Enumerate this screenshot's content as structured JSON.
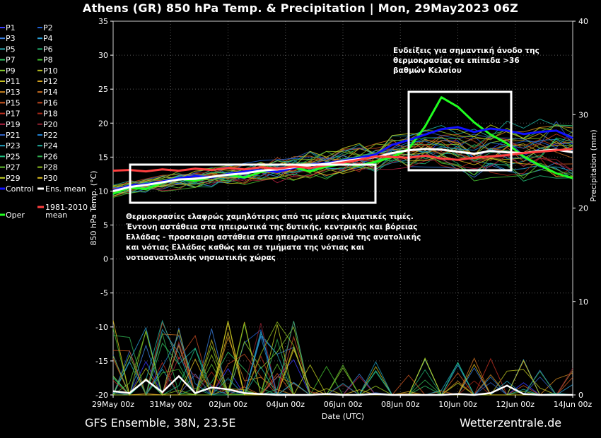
{
  "title": "Athens  (GR)  850 hPa Temp. & Precipitation | Mon, 29May2023 06Z",
  "footer": {
    "left": "GFS Ensemble, 38N, 23.5E",
    "right": "Wetterzentrale.de"
  },
  "chart_data": {
    "type": "line",
    "xlabel": "Date (UTC)",
    "ylabel": "850 hPa Temp. (°C)",
    "y2label": "Precipitation (mm)",
    "ylim": [
      -20,
      35
    ],
    "y2lim": [
      0,
      40
    ],
    "yticks": [
      -20,
      -15,
      -10,
      -5,
      0,
      5,
      10,
      15,
      20,
      25,
      30,
      35
    ],
    "y2ticks": [
      0,
      10,
      20,
      30,
      40
    ],
    "xticks": [
      "29May 00z",
      "31May 00z",
      "02Jun 00z",
      "04Jun 00z",
      "06Jun 00z",
      "08Jun 00z",
      "10Jun 00z",
      "12Jun 00z",
      "14Jun 00z"
    ],
    "grid": true,
    "legend_position": "left",
    "legend": [
      {
        "name": "P1",
        "color": "#3a3aff"
      },
      {
        "name": "P2",
        "color": "#1f5fd0"
      },
      {
        "name": "P3",
        "color": "#3a7fe0"
      },
      {
        "name": "P4",
        "color": "#2a9fd8"
      },
      {
        "name": "P5",
        "color": "#2aa8b0"
      },
      {
        "name": "P6",
        "color": "#20b070"
      },
      {
        "name": "P7",
        "color": "#30c060"
      },
      {
        "name": "P8",
        "color": "#44c030"
      },
      {
        "name": "P9",
        "color": "#88d030"
      },
      {
        "name": "P10",
        "color": "#b8c020"
      },
      {
        "name": "P11",
        "color": "#c8c020"
      },
      {
        "name": "P12",
        "color": "#d0a020"
      },
      {
        "name": "P13",
        "color": "#d08820"
      },
      {
        "name": "P14",
        "color": "#d07020"
      },
      {
        "name": "P15",
        "color": "#d05820"
      },
      {
        "name": "P16",
        "color": "#c04820"
      },
      {
        "name": "P17",
        "color": "#c03020"
      },
      {
        "name": "P18",
        "color": "#a82818"
      },
      {
        "name": "P19",
        "color": "#b02040"
      },
      {
        "name": "P20",
        "color": "#902030"
      },
      {
        "name": "P21",
        "color": "#3060c0"
      },
      {
        "name": "P22",
        "color": "#2080d0"
      },
      {
        "name": "P23",
        "color": "#20a0c0"
      },
      {
        "name": "P24",
        "color": "#20b0a0"
      },
      {
        "name": "P25",
        "color": "#20c080"
      },
      {
        "name": "P26",
        "color": "#30b050"
      },
      {
        "name": "P27",
        "color": "#60c030"
      },
      {
        "name": "P28",
        "color": "#90c020"
      },
      {
        "name": "P29",
        "color": "#c0d020"
      },
      {
        "name": "P30",
        "color": "#e0c020"
      },
      {
        "name": "Control",
        "color": "#1010ff"
      },
      {
        "name": "Ens. mean",
        "color": "#ffffff"
      },
      {
        "name": "1981-2010 mean",
        "color": "#ff4040"
      },
      {
        "name": "Oper",
        "color": "#20ff20"
      }
    ],
    "series": [
      {
        "name": "Oper",
        "values": [
          9.6,
          10.5,
          10.3,
          11.2,
          11.8,
          11.5,
          12.1,
          12.4,
          12.0,
          12.8,
          13.2,
          13.5,
          12.9,
          13.6,
          14.0,
          13.8,
          14.3,
          15.0,
          16.2,
          19.5,
          23.8,
          22.4,
          20.1,
          18.3,
          17.0,
          15.1,
          13.8,
          12.6,
          11.9
        ]
      },
      {
        "name": "Control",
        "values": [
          10.1,
          10.8,
          11.0,
          11.4,
          11.9,
          12.2,
          12.0,
          12.5,
          12.9,
          13.1,
          12.8,
          13.4,
          13.9,
          14.1,
          14.5,
          14.9,
          15.4,
          16.8,
          17.5,
          18.3,
          19.1,
          19.4,
          18.7,
          19.2,
          18.9,
          18.4,
          18.7,
          18.9,
          17.8
        ]
      },
      {
        "name": "Ens. mean",
        "values": [
          10.0,
          10.6,
          10.9,
          11.3,
          11.7,
          11.8,
          12.1,
          12.4,
          12.6,
          13.0,
          13.2,
          13.5,
          13.8,
          14.0,
          14.4,
          14.7,
          15.0,
          15.6,
          16.0,
          16.2,
          16.1,
          15.8,
          15.5,
          15.9,
          15.7,
          15.6,
          15.9,
          16.1,
          15.7
        ]
      },
      {
        "name": "1981-2010 mean",
        "values": [
          13.0,
          13.1,
          12.9,
          13.2,
          13.0,
          13.3,
          13.1,
          13.4,
          13.2,
          13.5,
          13.3,
          13.6,
          13.4,
          13.8,
          14.2,
          14.6,
          15.1,
          15.0,
          14.9,
          15.2,
          14.8,
          14.6,
          14.9,
          15.1,
          15.3,
          15.6,
          15.8,
          16.0,
          16.2
        ]
      }
    ],
    "ens_mean_precip_mm": [
      0.4,
      0.2,
      1.6,
      0.3,
      2.0,
      0.2,
      0.8,
      0.6,
      0.2,
      0.1,
      0.0,
      0.0,
      0.0,
      0.1,
      0.0,
      0.0,
      0.1,
      0.0,
      0.0,
      0.0,
      0.0,
      0.1,
      0.0,
      0.2,
      1.0,
      0.1,
      0.0,
      0.0,
      0.0
    ],
    "annotations": [
      {
        "lines": [
          "Ενδείξεις για σημαντική άνοδο της",
          "θερμοκρασίας σε επίπεδα >36",
          "βαθμών Κελσίου"
        ]
      },
      {
        "lines": [
          "Θερμοκρασίες ελαφρώς χαμηλότερες από τις μέσες κλιματικές τιμές.",
          "Έντονη αστάθεια στα ηπειρωτικά της δυτικής, κεντρικής και βόρειας",
          "Ελλάδας - προσκαιρη αστάθεια στα ηπειρωτικά ορεινά της ανατολικής",
          "και νότιας Ελλάδας καθώς και σε τμήματα της νότιας και",
          "νοτιοανατολικής νησιωτικής χώρας"
        ]
      }
    ]
  }
}
